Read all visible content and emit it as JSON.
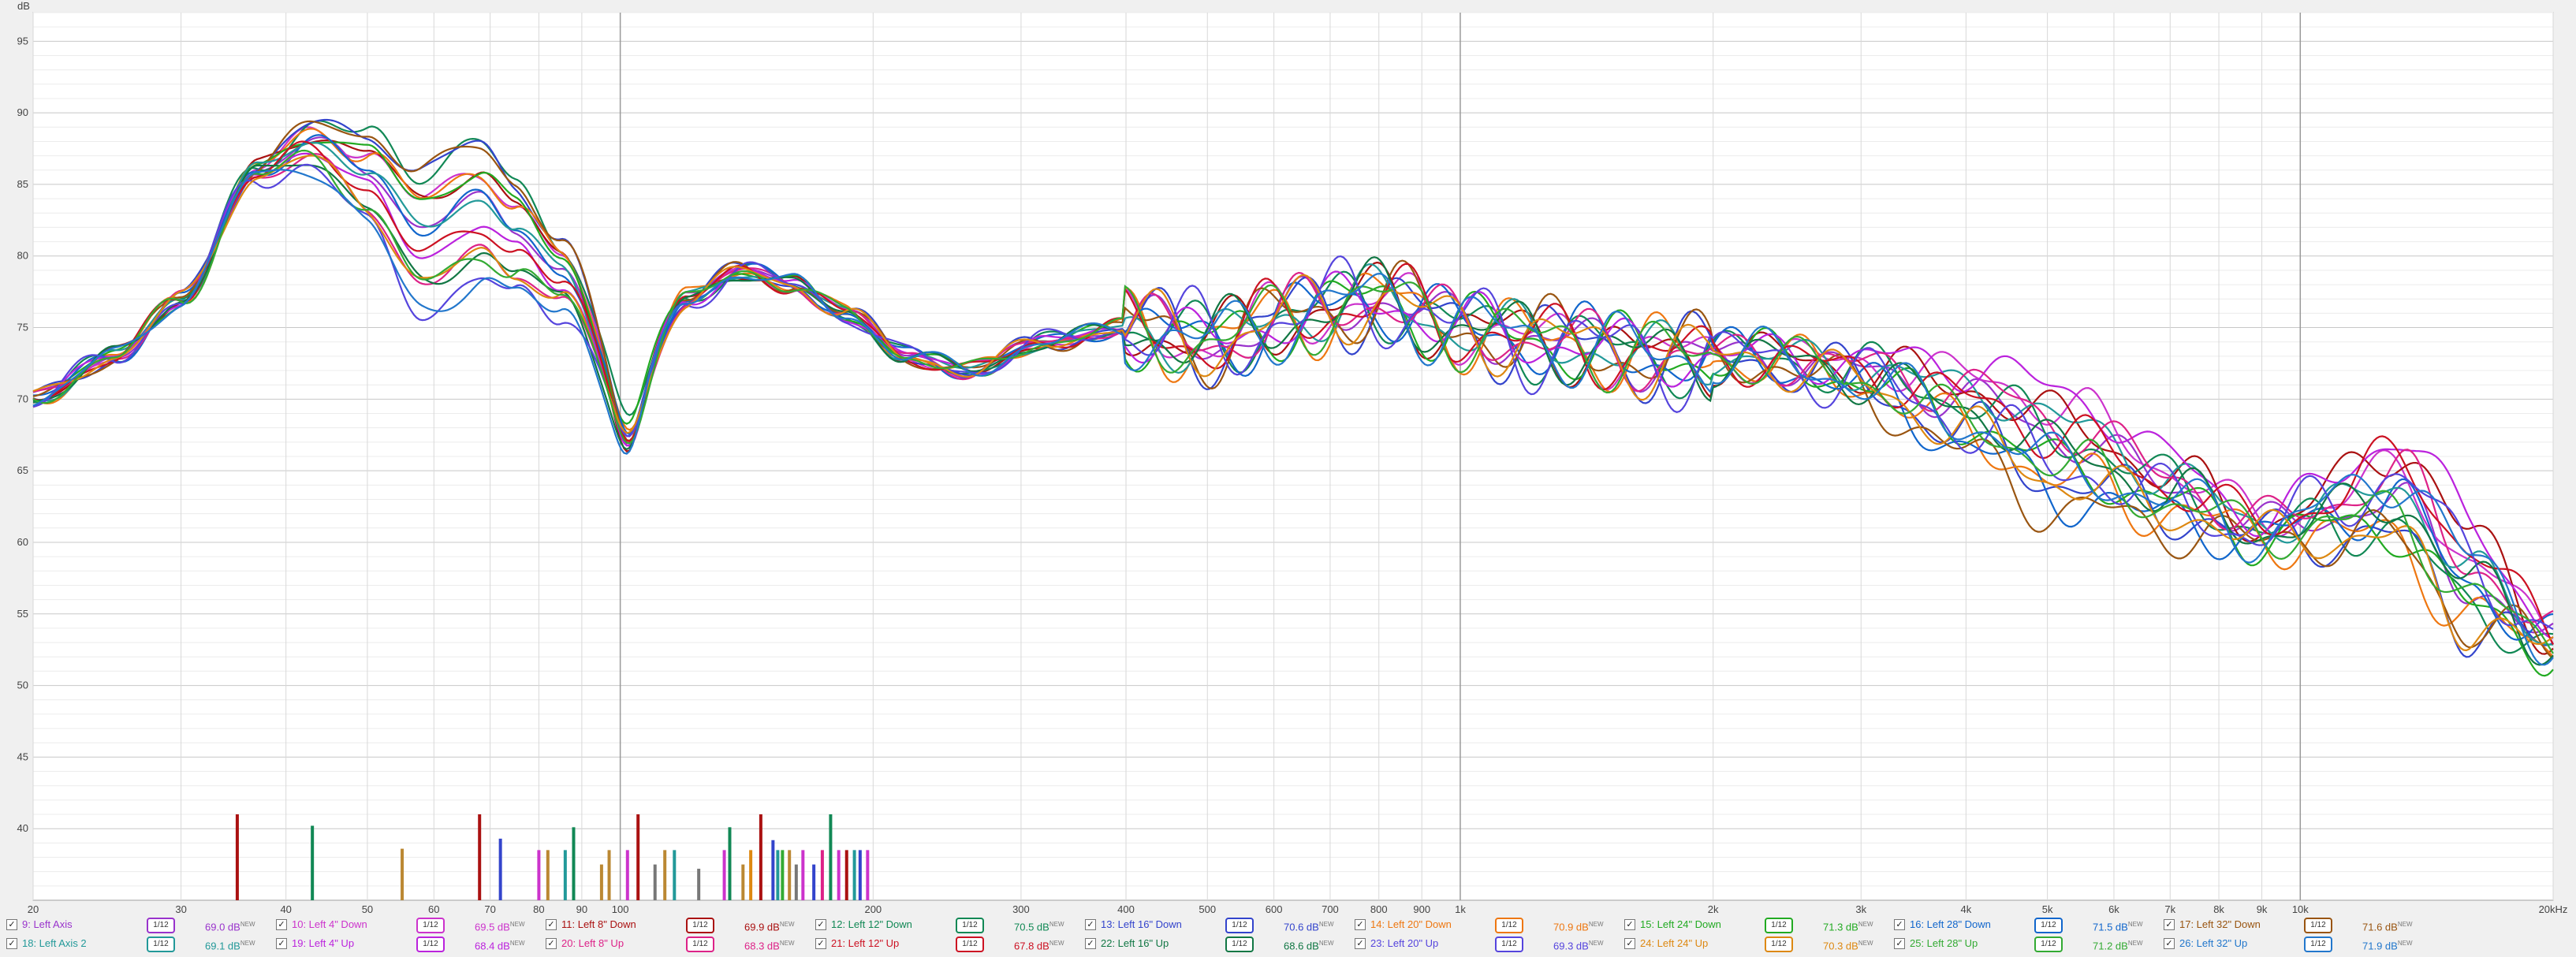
{
  "chart_data": {
    "type": "line",
    "ylabel": "dB",
    "xscale": "log",
    "xlim": [
      20,
      20000
    ],
    "ylim": [
      35,
      97
    ],
    "yticks": [
      40,
      45,
      50,
      55,
      60,
      65,
      70,
      75,
      80,
      85,
      90,
      95
    ],
    "xticks": [
      {
        "v": 20,
        "t": "20"
      },
      {
        "v": 30,
        "t": "30"
      },
      {
        "v": 40,
        "t": "40"
      },
      {
        "v": 50,
        "t": "50"
      },
      {
        "v": 60,
        "t": "60"
      },
      {
        "v": 70,
        "t": "70"
      },
      {
        "v": 80,
        "t": "80"
      },
      {
        "v": 90,
        "t": "90"
      },
      {
        "v": 100,
        "t": "100"
      },
      {
        "v": 200,
        "t": "200"
      },
      {
        "v": 300,
        "t": "300"
      },
      {
        "v": 400,
        "t": "400"
      },
      {
        "v": 500,
        "t": "500"
      },
      {
        "v": 600,
        "t": "600"
      },
      {
        "v": 700,
        "t": "700"
      },
      {
        "v": 800,
        "t": "800"
      },
      {
        "v": 900,
        "t": "900"
      },
      {
        "v": 1000,
        "t": "1k"
      },
      {
        "v": 2000,
        "t": "2k"
      },
      {
        "v": 3000,
        "t": "3k"
      },
      {
        "v": 4000,
        "t": "4k"
      },
      {
        "v": 5000,
        "t": "5k"
      },
      {
        "v": 6000,
        "t": "6k"
      },
      {
        "v": 7000,
        "t": "7k"
      },
      {
        "v": 8000,
        "t": "8k"
      },
      {
        "v": 9000,
        "t": "9k"
      },
      {
        "v": 10000,
        "t": "10k"
      },
      {
        "v": 20000,
        "t": "20kHz"
      }
    ],
    "anchor_x": [
      20,
      25,
      30,
      37,
      43,
      50,
      58,
      68,
      75,
      85,
      102,
      120,
      140,
      160,
      185,
      220,
      260,
      320,
      400,
      500,
      650,
      800,
      1000,
      1300,
      1700,
      2200,
      3000,
      4000,
      5500,
      7000,
      9000,
      11000,
      13000,
      16000,
      20000
    ],
    "base_y": [
      70,
      73,
      77,
      86,
      88,
      86,
      82,
      84,
      82,
      79,
      70,
      77,
      79,
      78,
      76,
      73,
      72,
      74,
      75,
      74,
      76,
      77,
      75,
      74,
      73,
      73,
      72,
      70,
      67,
      64,
      61,
      62,
      63,
      57,
      53
    ],
    "series": [
      {
        "name": "9: Left Axis",
        "color": "#9933cc",
        "seed": 1,
        "amp": 1.0,
        "dip100": 3,
        "tilt": [
          0,
          0,
          0
        ]
      },
      {
        "name": "10: Left 4\" Down",
        "color": "#cc33cc",
        "seed": 2,
        "amp": 1.1,
        "dip100": 3,
        "tilt": [
          1,
          2,
          2
        ]
      },
      {
        "name": "11: Left 8\" Down",
        "color": "#aa1111",
        "seed": 3,
        "amp": 1.2,
        "dip100": 4,
        "tilt": [
          1,
          1,
          4
        ]
      },
      {
        "name": "12: Left 12\" Down",
        "color": "#118855",
        "seed": 4,
        "amp": 1.2,
        "dip100": 2,
        "tilt": [
          2,
          0,
          -2
        ]
      },
      {
        "name": "13: Left 16\" Down",
        "color": "#3344cc",
        "seed": 5,
        "amp": 1.4,
        "dip100": 3,
        "tilt": [
          2,
          -3,
          -3
        ]
      },
      {
        "name": "14: Left 20\" Down",
        "color": "#ee7711",
        "seed": 6,
        "amp": 1.3,
        "dip100": 2,
        "tilt": [
          1,
          -3,
          -3
        ]
      },
      {
        "name": "15: Left 24\" Down",
        "color": "#22aa22",
        "seed": 7,
        "amp": 1.2,
        "dip100": 2,
        "tilt": [
          1,
          -2,
          -2
        ]
      },
      {
        "name": "16: Left 28\" Down",
        "color": "#1166cc",
        "seed": 8,
        "amp": 1.2,
        "dip100": 3,
        "tilt": [
          0,
          -4,
          0
        ]
      },
      {
        "name": "17: Left 32\" Down",
        "color": "#995511",
        "seed": 9,
        "amp": 1.3,
        "dip100": 3,
        "tilt": [
          2,
          -5,
          -3
        ]
      },
      {
        "name": "18: Left Axis 2",
        "color": "#229999",
        "seed": 10,
        "amp": 1.0,
        "dip100": 3,
        "tilt": [
          0,
          1,
          1
        ]
      },
      {
        "name": "19: Left 4\" Up",
        "color": "#bb22dd",
        "seed": 11,
        "amp": 1.0,
        "dip100": 3,
        "tilt": [
          -1,
          3,
          5
        ]
      },
      {
        "name": "20: Left 8\" Up",
        "color": "#dd2288",
        "seed": 12,
        "amp": 1.1,
        "dip100": 3,
        "tilt": [
          -2,
          1,
          2
        ]
      },
      {
        "name": "21: Left 12\" Up",
        "color": "#cc1122",
        "seed": 13,
        "amp": 1.2,
        "dip100": 2,
        "tilt": [
          -1,
          0,
          3
        ]
      },
      {
        "name": "22: Left 16\" Up",
        "color": "#117744",
        "seed": 14,
        "amp": 1.2,
        "dip100": 3,
        "tilt": [
          -2,
          -1,
          0
        ]
      },
      {
        "name": "23: Left 20\" Up",
        "color": "#5544dd",
        "seed": 15,
        "amp": 1.5,
        "dip100": 2,
        "tilt": [
          -3,
          -2,
          2
        ]
      },
      {
        "name": "24: Left 24\" Up",
        "color": "#dd8811",
        "seed": 16,
        "amp": 1.2,
        "dip100": 2,
        "tilt": [
          -2,
          -3,
          -3
        ]
      },
      {
        "name": "25: Left 28\" Up",
        "color": "#33aa33",
        "seed": 17,
        "amp": 1.2,
        "dip100": 2,
        "tilt": [
          -2,
          -2,
          -1
        ]
      },
      {
        "name": "26: Left 32\" Up",
        "color": "#2277cc",
        "seed": 18,
        "amp": 1.3,
        "dip100": 3,
        "tilt": [
          -3,
          -2,
          2
        ]
      }
    ],
    "markers": [
      {
        "f": 35,
        "top": 41,
        "color": "#aa1111"
      },
      {
        "f": 43,
        "top": 40.2,
        "color": "#118855"
      },
      {
        "f": 55,
        "top": 38.6,
        "color": "#bb8833"
      },
      {
        "f": 68,
        "top": 41,
        "color": "#aa1111"
      },
      {
        "f": 72,
        "top": 39.3,
        "color": "#3344cc"
      },
      {
        "f": 80,
        "top": 38.5,
        "color": "#cc33cc"
      },
      {
        "f": 82,
        "top": 38.5,
        "color": "#bb8833"
      },
      {
        "f": 86,
        "top": 38.5,
        "color": "#229999"
      },
      {
        "f": 88,
        "top": 40.1,
        "color": "#118855"
      },
      {
        "f": 95,
        "top": 37.5,
        "color": "#bb8833"
      },
      {
        "f": 97,
        "top": 38.5,
        "color": "#bb8833"
      },
      {
        "f": 105,
        "top": 41,
        "color": "#aa1111"
      },
      {
        "f": 102,
        "top": 38.5,
        "color": "#cc33cc"
      },
      {
        "f": 110,
        "top": 37.5,
        "color": "#777777"
      },
      {
        "f": 113,
        "top": 38.5,
        "color": "#bb8833"
      },
      {
        "f": 116,
        "top": 38.5,
        "color": "#229999"
      },
      {
        "f": 124,
        "top": 37.2,
        "color": "#777777"
      },
      {
        "f": 133,
        "top": 38.5,
        "color": "#cc33cc"
      },
      {
        "f": 135,
        "top": 40.1,
        "color": "#118855"
      },
      {
        "f": 140,
        "top": 37.5,
        "color": "#bb8833"
      },
      {
        "f": 143,
        "top": 38.5,
        "color": "#dd8811"
      },
      {
        "f": 147,
        "top": 41,
        "color": "#aa1111"
      },
      {
        "f": 152,
        "top": 39.2,
        "color": "#3344cc"
      },
      {
        "f": 154,
        "top": 38.5,
        "color": "#229999"
      },
      {
        "f": 156,
        "top": 38.5,
        "color": "#33aa33"
      },
      {
        "f": 159,
        "top": 38.5,
        "color": "#bb8833"
      },
      {
        "f": 162,
        "top": 37.5,
        "color": "#777777"
      },
      {
        "f": 165,
        "top": 38.5,
        "color": "#cc33cc"
      },
      {
        "f": 170,
        "top": 37.5,
        "color": "#3344cc"
      },
      {
        "f": 174,
        "top": 38.5,
        "color": "#dd2288"
      },
      {
        "f": 178,
        "top": 41,
        "color": "#118855"
      },
      {
        "f": 182,
        "top": 38.5,
        "color": "#cc33cc"
      },
      {
        "f": 186,
        "top": 38.5,
        "color": "#aa1111"
      },
      {
        "f": 190,
        "top": 38.5,
        "color": "#229999"
      },
      {
        "f": 193,
        "top": 38.5,
        "color": "#3344cc"
      },
      {
        "f": 197,
        "top": 38.5,
        "color": "#cc33cc"
      }
    ],
    "legend_placement": "bottom",
    "grid": true
  },
  "legend": [
    [
      {
        "label": "9: Left Axis",
        "button": "1/12",
        "db": "69.0 dB",
        "tag": "NEW",
        "color": "#9933cc"
      },
      {
        "label": "10: Left 4\" Down",
        "button": "1/12",
        "db": "69.5 dB",
        "tag": "NEW",
        "color": "#cc33cc"
      },
      {
        "label": "11: Left 8\" Down",
        "button": "1/12",
        "db": "69.9 dB",
        "tag": "NEW",
        "color": "#aa1111"
      },
      {
        "label": "12: Left 12\" Down",
        "button": "1/12",
        "db": "70.5 dB",
        "tag": "NEW",
        "color": "#118855"
      },
      {
        "label": "13: Left 16\" Down",
        "button": "1/12",
        "db": "70.6 dB",
        "tag": "NEW",
        "color": "#3344cc"
      },
      {
        "label": "14: Left 20\" Down",
        "button": "1/12",
        "db": "70.9 dB",
        "tag": "NEW",
        "color": "#ee7711"
      },
      {
        "label": "15: Left 24\" Down",
        "button": "1/12",
        "db": "71.3 dB",
        "tag": "NEW",
        "color": "#22aa22"
      },
      {
        "label": "16: Left 28\" Down",
        "button": "1/12",
        "db": "71.5 dB",
        "tag": "NEW",
        "color": "#1166cc"
      },
      {
        "label": "17: Left 32\" Down",
        "button": "1/12",
        "db": "71.6 dB",
        "tag": "NEW",
        "color": "#995511"
      }
    ],
    [
      {
        "label": "18: Left Axis 2",
        "button": "1/12",
        "db": "69.1 dB",
        "tag": "NEW",
        "color": "#229999"
      },
      {
        "label": "19: Left 4\" Up",
        "button": "1/12",
        "db": "68.4 dB",
        "tag": "NEW",
        "color": "#bb22dd"
      },
      {
        "label": "20: Left 8\" Up",
        "button": "1/12",
        "db": "68.3 dB",
        "tag": "NEW",
        "color": "#dd2288"
      },
      {
        "label": "21: Left 12\" Up",
        "button": "1/12",
        "db": "67.8 dB",
        "tag": "NEW",
        "color": "#cc1122"
      },
      {
        "label": "22: Left 16\" Up",
        "button": "1/12",
        "db": "68.6 dB",
        "tag": "NEW",
        "color": "#117744"
      },
      {
        "label": "23: Left 20\" Up",
        "button": "1/12",
        "db": "69.3 dB",
        "tag": "NEW",
        "color": "#5544dd"
      },
      {
        "label": "24: Left 24\" Up",
        "button": "1/12",
        "db": "70.3 dB",
        "tag": "NEW",
        "color": "#dd8811"
      },
      {
        "label": "25: Left 28\" Up",
        "button": "1/12",
        "db": "71.2 dB",
        "tag": "NEW",
        "color": "#33aa33"
      },
      {
        "label": "26: Left 32\" Up",
        "button": "1/12",
        "db": "71.9 dB",
        "tag": "NEW",
        "color": "#2277cc"
      }
    ]
  ]
}
